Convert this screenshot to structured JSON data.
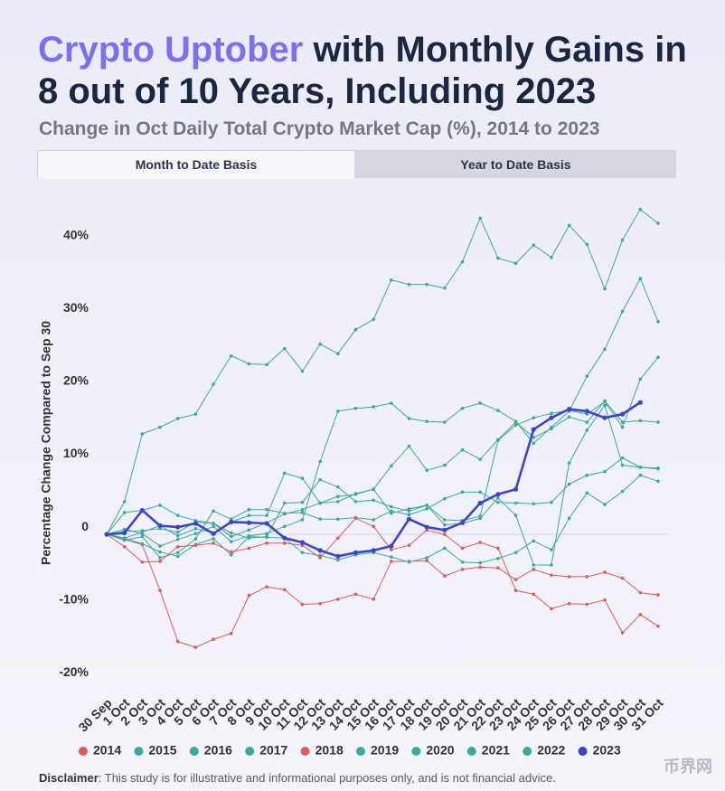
{
  "chart_data": {
    "type": "line",
    "title_highlight": "Crypto Uptober",
    "title": " with Monthly Gains in 8 out of 10 Years, Including 2023",
    "subtitle": "Change in Oct Daily Total Crypto Market Cap (%), 2014 to 2023",
    "tabs": [
      "Month to Date Basis",
      "Year to Date Basis"
    ],
    "y_label": "Percentage Change Compared to Sep 30",
    "categories": [
      "30 Sep",
      "1 Oct",
      "2 Oct",
      "3 Oct",
      "4 Oct",
      "5 Oct",
      "6 Oct",
      "7 Oct",
      "8 Oct",
      "9 Oct",
      "10 Oct",
      "11 Oct",
      "12 Oct",
      "13 Oct",
      "14 Oct",
      "15 Oct",
      "16 Oct",
      "17 Oct",
      "18 Oct",
      "19 Oct",
      "20 Oct",
      "21 Oct",
      "22 Oct",
      "23 Oct",
      "24 Oct",
      "25 Oct",
      "26 Oct",
      "27 Oct",
      "28 Oct",
      "29 Oct",
      "30 Oct",
      "31 Oct"
    ],
    "ylim": [
      -22,
      46
    ],
    "yticks": [
      {
        "value": -20,
        "label": "-20%"
      },
      {
        "value": -10,
        "label": "-10%"
      },
      0,
      {
        "value": 10,
        "label": "10%"
      },
      {
        "value": 20,
        "label": "20%"
      },
      {
        "value": 30,
        "label": "30%"
      },
      {
        "value": 40,
        "label": "40%"
      }
    ],
    "grid": false,
    "series": [
      {
        "name": "2014",
        "color": "#e05a5a",
        "values": [
          0,
          -0.7,
          -1.4,
          -7.7,
          -14.7,
          -15.5,
          -14.4,
          -13.6,
          -8.4,
          -7.2,
          -7.6,
          -9.6,
          -9.5,
          -8.9,
          -8.2,
          -8.9,
          -3.7,
          -3.7,
          -3.6,
          -5.7,
          -4.8,
          -4.5,
          -4.6,
          -6.2,
          -4.8,
          -5.6,
          -5.8,
          -5.8,
          -5.2,
          -6.0,
          -8.0,
          -8.3
        ]
      },
      {
        "name": "2015",
        "color": "#3aa99f",
        "values": [
          0,
          -0.5,
          -1.3,
          -2.4,
          -3.0,
          -1.4,
          -0.6,
          -2.8,
          -0.3,
          -0.4,
          -0.5,
          -2.5,
          -2.9,
          -3.5,
          -2.8,
          -2.5,
          -3.1,
          -3.8,
          -3.2,
          -1.9,
          -3.8,
          -3.9,
          -3.3,
          -2.5,
          -0.9,
          -2.1,
          2.2,
          5.7,
          4.1,
          5.9,
          8.1,
          7.3
        ]
      },
      {
        "name": "2016",
        "color": "#3aa99f",
        "values": [
          0,
          -0.8,
          -0.3,
          -3.2,
          -2.5,
          -0.6,
          3.2,
          2.1,
          3.4,
          3.4,
          2.9,
          3.0,
          2.1,
          2.1,
          2.3,
          2.0,
          3.2,
          2.7,
          3.5,
          4.9,
          5.8,
          5.8,
          4.4,
          4.3,
          4.2,
          4.4,
          6.9,
          8.1,
          8.6,
          10.5,
          9.2,
          9.1
        ]
      },
      {
        "name": "2017",
        "color": "#3aa99f",
        "values": [
          0,
          4.5,
          13.8,
          14.7,
          15.9,
          16.5,
          20.6,
          24.5,
          23.4,
          23.3,
          25.5,
          22.4,
          26.1,
          24.8,
          28.1,
          29.5,
          34.9,
          34.3,
          34.3,
          33.8,
          37.4,
          43.4,
          37.9,
          37.2,
          39.7,
          38.0,
          42.4,
          39.8,
          33.7,
          40.4,
          44.6,
          42.7
        ]
      },
      {
        "name": "2018",
        "color": "#e05a5a",
        "values": [
          0,
          -1.7,
          -3.8,
          -3.7,
          -1.7,
          -1.5,
          -1.2,
          -2.4,
          -1.9,
          -1.2,
          -1.2,
          -1.5,
          -3.2,
          -0.5,
          2.2,
          1.1,
          -2.1,
          -1.5,
          0.6,
          0,
          -1.9,
          -1.1,
          -1.9,
          -7.7,
          -8.2,
          -10.2,
          -9.5,
          -9.6,
          -9.0,
          -13.5,
          -11.0,
          -12.6
        ]
      },
      {
        "name": "2019",
        "color": "#3aa99f",
        "values": [
          0,
          3.0,
          3.3,
          4.0,
          2.6,
          1.9,
          1.5,
          0.2,
          -0.5,
          -0.3,
          4.3,
          4.4,
          7.5,
          6.5,
          4.5,
          4.7,
          3.8,
          3.2,
          4.0,
          1.3,
          1.5,
          2.2,
          5.0,
          2.6,
          -4.2,
          -4.2,
          9.8,
          14.3,
          17.7,
          9.5,
          9.2,
          9.0
        ]
      },
      {
        "name": "2020",
        "color": "#3aa99f",
        "values": [
          0,
          0.7,
          0.1,
          -1.6,
          -0.7,
          0.1,
          1.1,
          -1.0,
          -0.2,
          0.1,
          1.1,
          2.0,
          10.0,
          16.9,
          17.3,
          17.5,
          18.0,
          15.9,
          15.5,
          15.4,
          17.3,
          18.0,
          17.0,
          15.5,
          12.5,
          14.7,
          16.9,
          21.7,
          25.4,
          30.6,
          35.1,
          29.2
        ]
      },
      {
        "name": "2021",
        "color": "#3aa99f",
        "values": [
          0,
          -0.5,
          0.3,
          1.2,
          -0.2,
          0.8,
          0.2,
          1.7,
          2.6,
          2.6,
          8.4,
          7.7,
          4.3,
          4.5,
          5.6,
          6.2,
          2.9,
          3.5,
          4.0,
          2.0,
          1.9,
          2.5,
          12.9,
          15.0,
          16.0,
          16.6,
          17.0,
          16.5,
          18.2,
          14.7,
          21.3,
          24.3
        ]
      },
      {
        "name": "2022",
        "color": "#3aa99f",
        "values": [
          0,
          0.4,
          0.5,
          0.8,
          0.3,
          1.7,
          1.5,
          -0.3,
          0.6,
          1.6,
          2.8,
          3.4,
          4.3,
          5.2,
          5.5,
          6.2,
          9.4,
          12.1,
          8.8,
          9.5,
          11.6,
          10.3,
          13.0,
          15.4,
          13.3,
          14.5,
          16.1,
          15.4,
          18.3,
          15.4,
          15.6,
          15.4
        ]
      },
      {
        "name": "2023",
        "color": "#3f43c9",
        "values": [
          0,
          0.2,
          3.3,
          1.2,
          1.0,
          1.5,
          0.1,
          1.7,
          1.6,
          1.5,
          -0.5,
          -1.1,
          -2.2,
          -3.0,
          -2.5,
          -2.2,
          -1.6,
          2.1,
          1.0,
          0.6,
          1.6,
          4.3,
          5.5,
          6.2,
          14.4,
          16.0,
          17.2,
          16.9,
          16.0,
          16.5,
          18.1,
          null
        ]
      }
    ],
    "disclaimer_label": "Disclaimer",
    "disclaimer_text": ": This study is for illustrative and informational purposes only, and is not financial advice.",
    "watermark": "币界网"
  }
}
